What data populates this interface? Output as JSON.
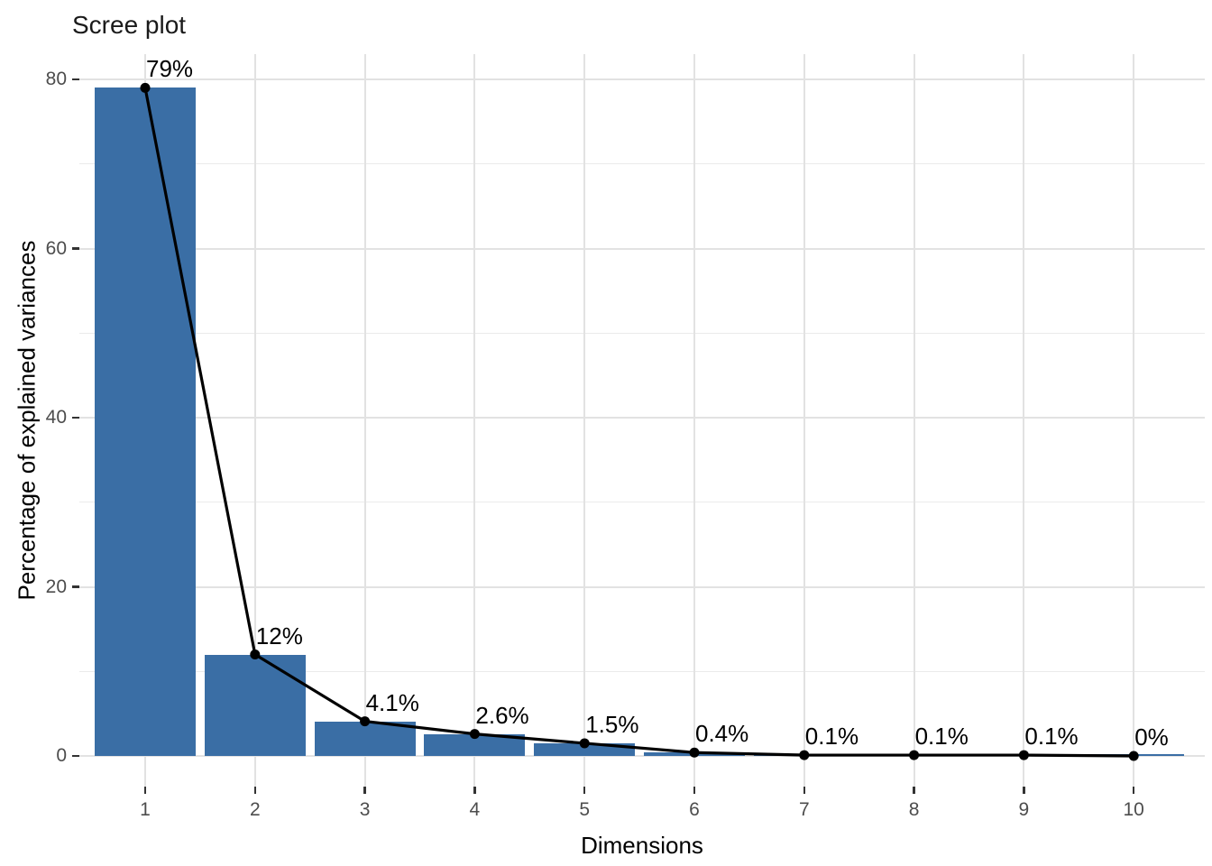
{
  "chart_data": {
    "type": "bar",
    "subtype": "scree-plot-bar-with-line",
    "title": "Scree plot",
    "xlabel": "Dimensions",
    "ylabel": "Percentage of explained variances",
    "categories": [
      "1",
      "2",
      "3",
      "4",
      "5",
      "6",
      "7",
      "8",
      "9",
      "10"
    ],
    "values": [
      79,
      12,
      4.1,
      2.6,
      1.5,
      0.4,
      0.1,
      0.1,
      0.1,
      0
    ],
    "point_labels": [
      "79%",
      "12%",
      "4.1%",
      "2.6%",
      "1.5%",
      "0.4%",
      "0.1%",
      "0.1%",
      "0.1%",
      "0%"
    ],
    "y_ticks": [
      0,
      20,
      40,
      60,
      80
    ],
    "y_minor_ticks": [
      10,
      30,
      50,
      70
    ],
    "ylim": [
      0,
      83
    ],
    "grid": "horizontal major+minor, vertical major at each dimension",
    "legend_position": "none",
    "colors": {
      "bar_fill": "#3a6ea5",
      "line": "#000000",
      "point": "#000000",
      "grid_major": "#e2e2e2",
      "grid_minor": "#ebebeb",
      "axis_text": "#4d4d4d",
      "tick_mark": "#333333",
      "title_text": "#1a1a1a",
      "background": "#ffffff"
    }
  }
}
